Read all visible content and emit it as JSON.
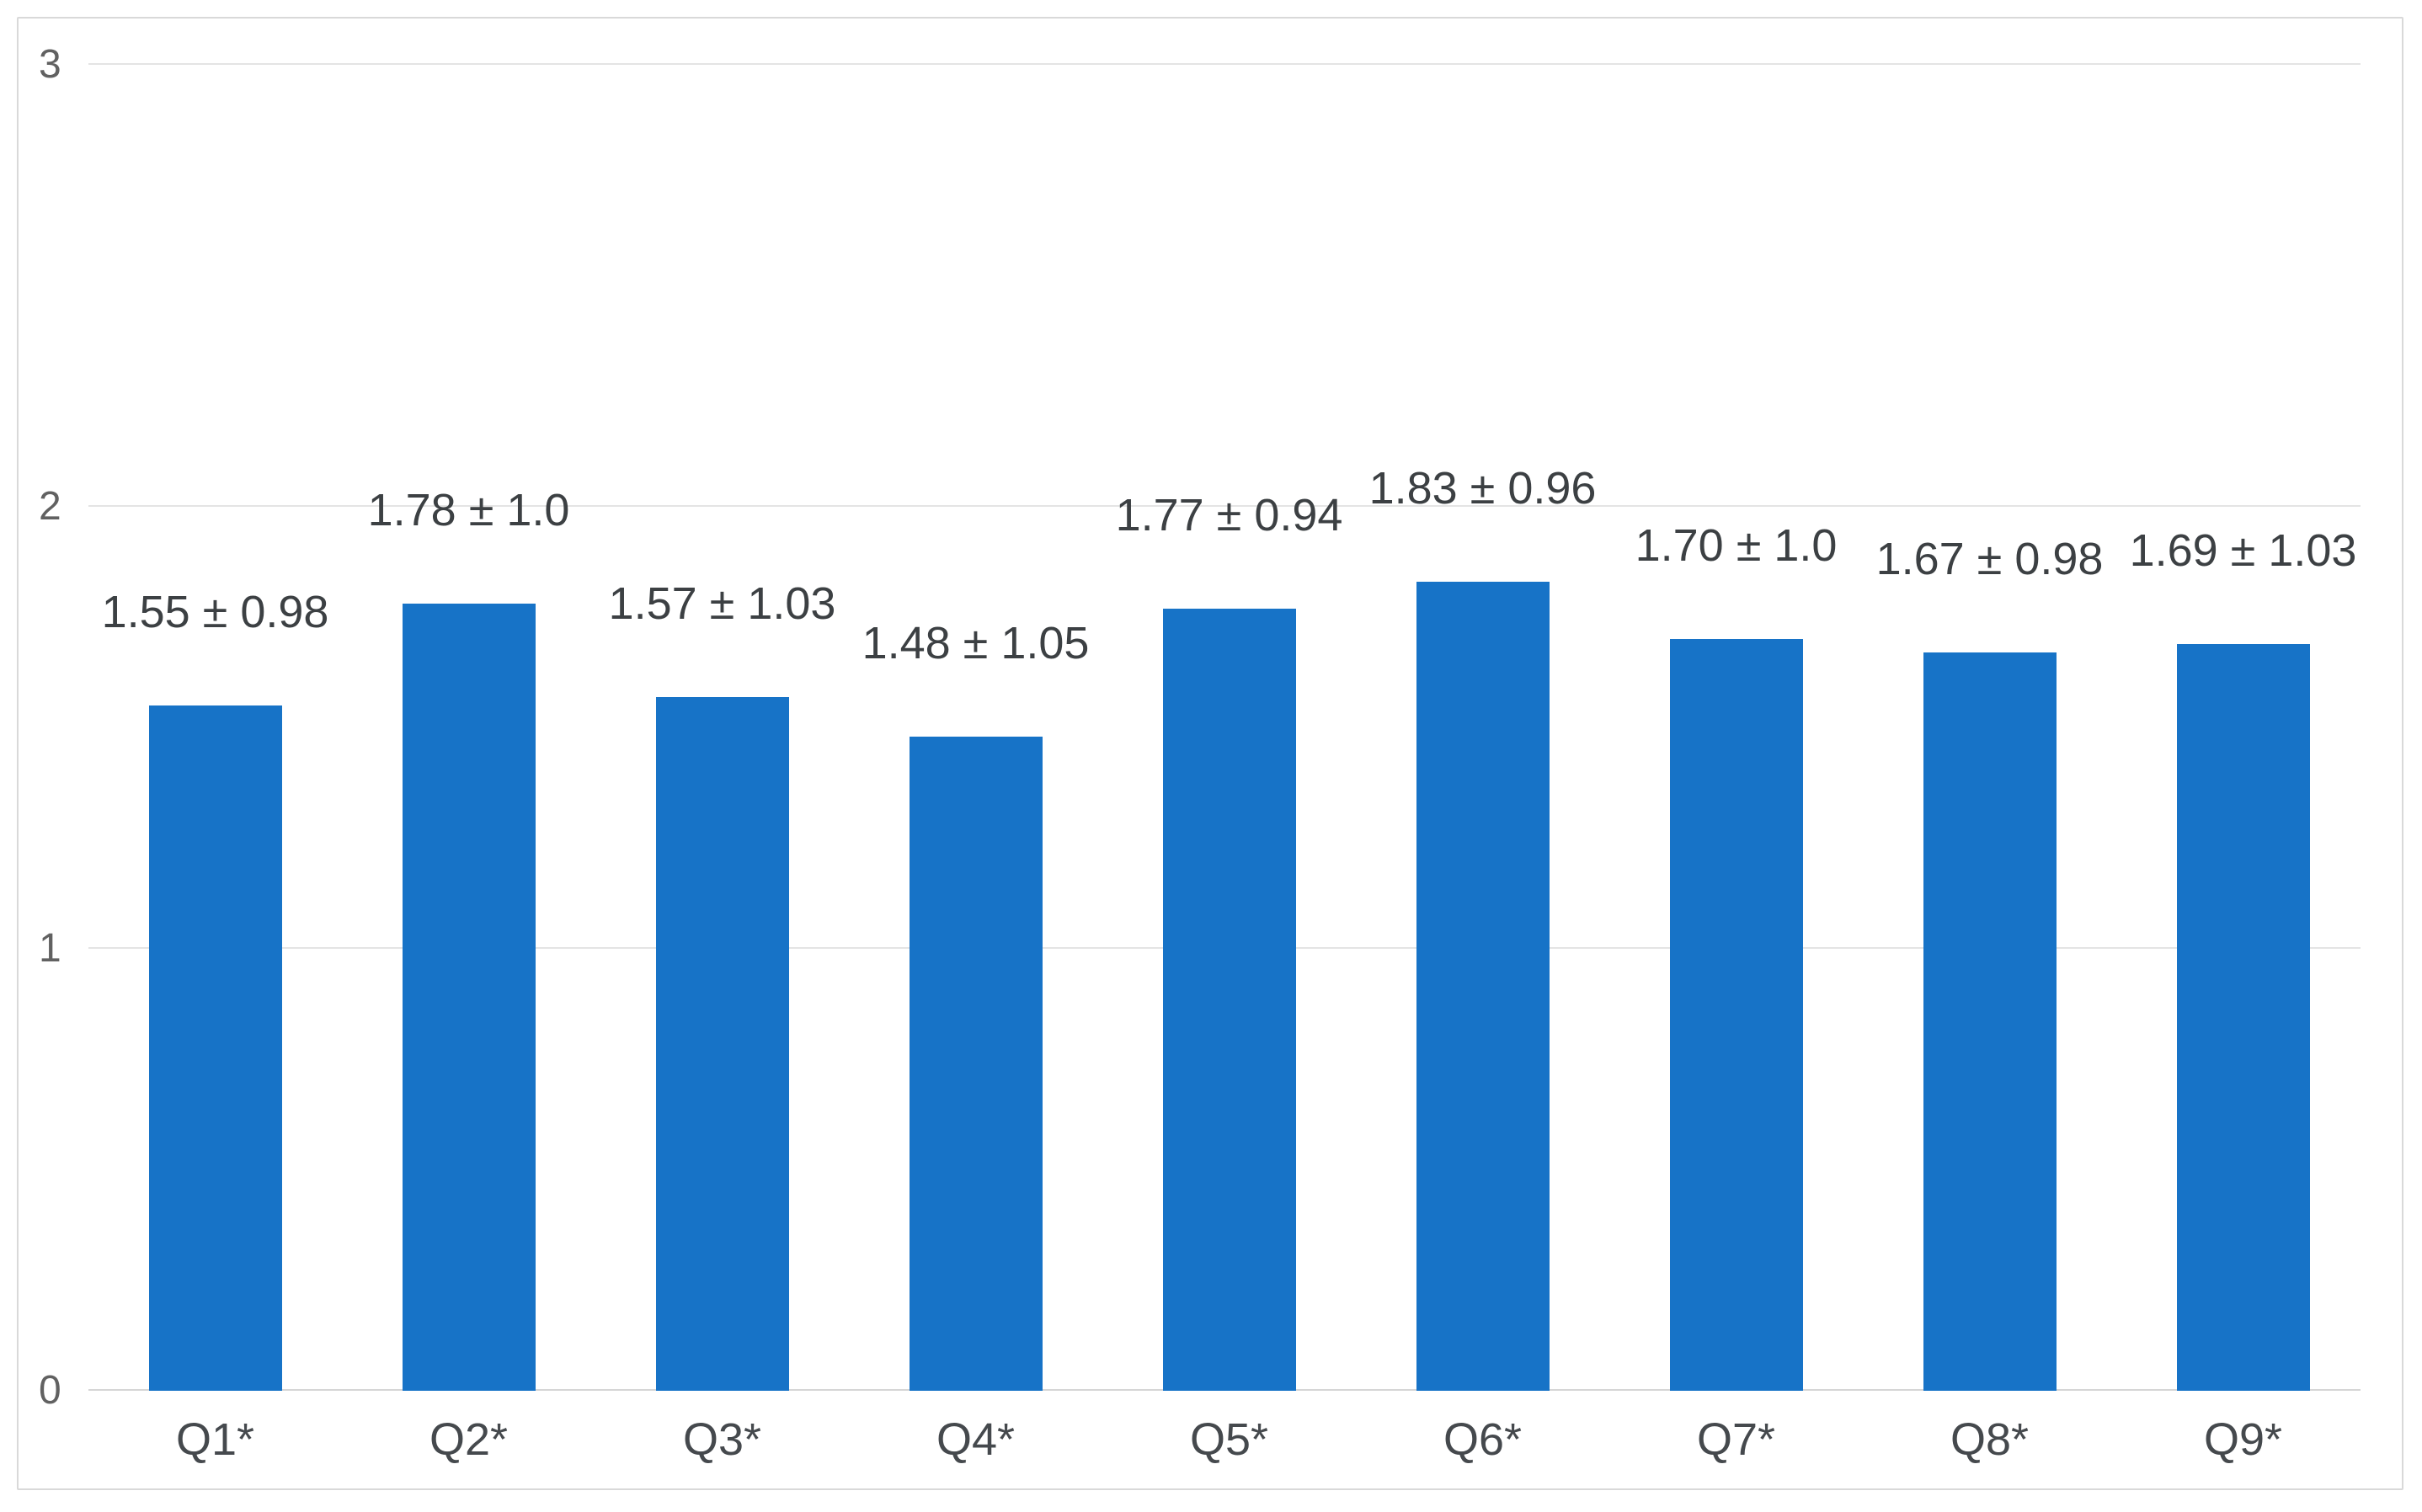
{
  "chart_data": {
    "type": "bar",
    "categories": [
      "Q1*",
      "Q2*",
      "Q3*",
      "Q4*",
      "Q5*",
      "Q6*",
      "Q7*",
      "Q8*",
      "Q9*"
    ],
    "values": [
      1.55,
      1.78,
      1.57,
      1.48,
      1.77,
      1.83,
      1.7,
      1.67,
      1.69
    ],
    "errors": [
      0.98,
      1.0,
      1.03,
      1.05,
      0.94,
      0.96,
      1.0,
      0.98,
      1.03
    ],
    "bar_labels": [
      "1.55 ± 0.98",
      "1.78 ± 1.0",
      "1.57 ± 1.03",
      "1.48 ± 1.05",
      "1.77 ± 0.94",
      "1.83 ± 0.96",
      "1.70 ± 1.0",
      "1.67 ± 0.98",
      "1.69 ± 1.03"
    ],
    "title": "",
    "xlabel": "",
    "ylabel": "",
    "ylim": [
      0,
      3
    ],
    "yticks": [
      0,
      1,
      2,
      3
    ],
    "ytick_labels": [
      "0",
      "1",
      "2",
      "3"
    ],
    "grid": true,
    "legend_position": "none",
    "bar_color": "#1773C7",
    "label_color": "#3c4043",
    "tick_color": "#616161",
    "xlabel_color": "#45494d",
    "gridline_color": "#e4e4e4",
    "baseline_color": "#d6d6d6",
    "frame_border_color": "#d9d9d9"
  }
}
